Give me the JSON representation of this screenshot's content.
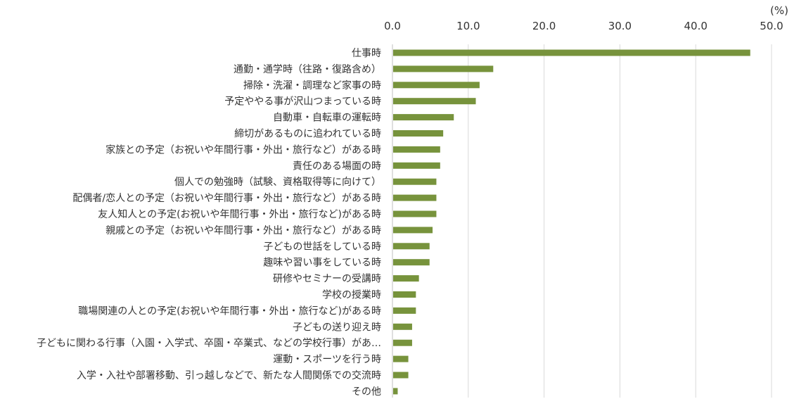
{
  "chart_data": {
    "type": "bar",
    "orientation": "horizontal",
    "unit": "(%)",
    "xlim": [
      0,
      50
    ],
    "ticks": [
      "0.0",
      "10.0",
      "20.0",
      "30.0",
      "40.0",
      "50.0"
    ],
    "tick_values": [
      0,
      10,
      20,
      30,
      40,
      50
    ],
    "grid": true,
    "bar_color": "#77933C",
    "grid_color": "#D9D9D9",
    "categories": [
      "仕事時",
      "通勤・通学時（往路・復路含め）",
      "掃除・洗濯・調理など家事の時",
      "予定ややる事が沢山つまっている時",
      "自動車・自転車の運転時",
      "締切があるものに追われている時",
      "家族との予定（お祝いや年間行事・外出・旅行など）がある時",
      "責任のある場面の時",
      "個人での勉強時（試験、資格取得等に向けて）",
      "配偶者/恋人との予定（お祝いや年間行事・外出・旅行など）がある時",
      "友人知人との予定(お祝いや年間行事・外出・旅行など)がある時",
      "親戚との予定（お祝いや年間行事・外出・旅行など）がある時",
      "子どもの世話をしている時",
      "趣味や習い事をしている時",
      "研修やセミナーの受講時",
      "学校の授業時",
      "職場関連の人との予定(お祝いや年間行事・外出・旅行など)がある時",
      "子どもの送り迎え時",
      "子どもに関わる行事（入園・入学式、卒園・卒業式、などの学校行事）があ…",
      "運動・スポーツを行う時",
      "入学・入社や部署移動、引っ越しなどで、新たな人間関係での交流時",
      "その他"
    ],
    "values": [
      47.1,
      13.2,
      11.4,
      10.9,
      8.0,
      6.6,
      6.2,
      6.2,
      5.7,
      5.7,
      5.7,
      5.2,
      4.8,
      4.8,
      3.4,
      3.0,
      3.0,
      2.5,
      2.5,
      2.0,
      2.0,
      0.6
    ]
  }
}
